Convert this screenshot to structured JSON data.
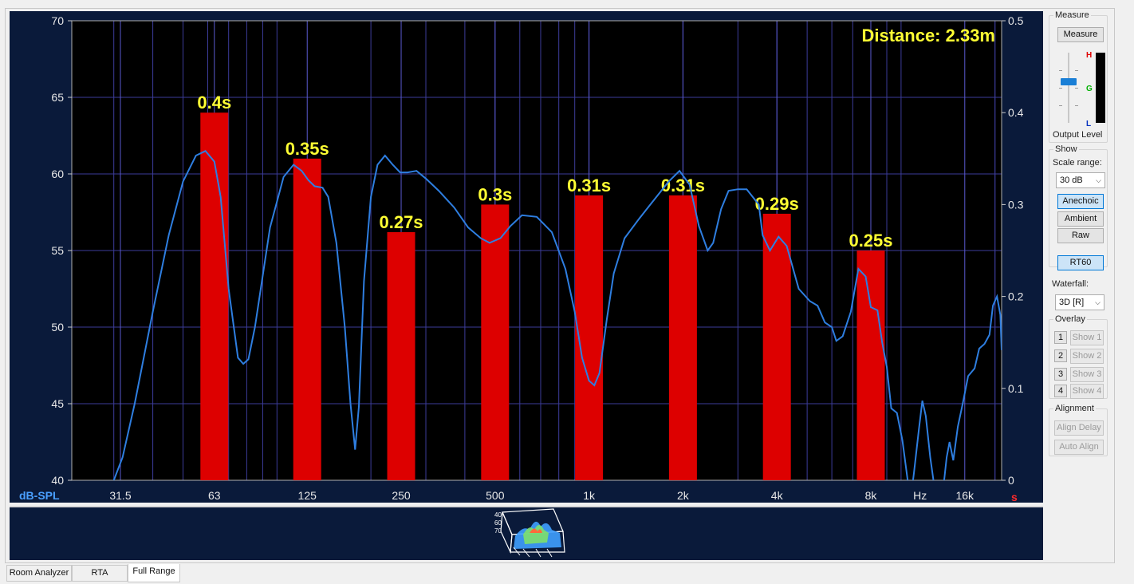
{
  "chart_data": {
    "type": "bar",
    "title": "Distance: 2.33m",
    "x_scale": "log",
    "x_unit": "Hz",
    "xlim": [
      22,
      21000
    ],
    "x_ticks": [
      {
        "label": "31.5",
        "value": 31.5
      },
      {
        "label": "63",
        "value": 63
      },
      {
        "label": "125",
        "value": 125
      },
      {
        "label": "250",
        "value": 250
      },
      {
        "label": "500",
        "value": 500
      },
      {
        "label": "1k",
        "value": 1000
      },
      {
        "label": "2k",
        "value": 2000
      },
      {
        "label": "4k",
        "value": 4000
      },
      {
        "label": "8k",
        "value": 8000
      },
      {
        "label": "16k",
        "value": 16000
      }
    ],
    "ylabel_left": "dB-SPL",
    "ylim_left": [
      40,
      70
    ],
    "y_ticks_left": [
      40,
      45,
      50,
      55,
      60,
      65,
      70
    ],
    "ylabel_right": "s",
    "ylim_right": [
      0,
      0.5
    ],
    "y_ticks_right": [
      "0",
      "0.1",
      "0.2",
      "0.3",
      "0.4",
      "0.5"
    ],
    "grid": true,
    "bar_series": {
      "name": "RT60",
      "color": "#dd0000",
      "axis": "right",
      "categories": [
        63,
        125,
        250,
        500,
        1000,
        2000,
        4000,
        8000
      ],
      "values": [
        0.4,
        0.35,
        0.27,
        0.3,
        0.31,
        0.31,
        0.29,
        0.25
      ],
      "labels": [
        "0.4s",
        "0.35s",
        "0.27s",
        "0.3s",
        "0.31s",
        "0.31s",
        "0.29s",
        "0.25s"
      ]
    },
    "line_series": {
      "color": "#2e7ee0",
      "axis": "left",
      "points": [
        [
          30,
          40
        ],
        [
          32,
          41.5
        ],
        [
          35,
          45
        ],
        [
          40,
          51
        ],
        [
          45,
          56
        ],
        [
          50,
          59.5
        ],
        [
          55,
          61.2
        ],
        [
          59,
          61.5
        ],
        [
          63,
          60.8
        ],
        [
          66,
          58.5
        ],
        [
          70,
          52.5
        ],
        [
          75,
          48
        ],
        [
          78,
          47.6
        ],
        [
          81,
          47.9
        ],
        [
          85,
          50
        ],
        [
          95,
          56.5
        ],
        [
          105,
          59.8
        ],
        [
          113,
          60.6
        ],
        [
          120,
          60.2
        ],
        [
          126,
          59.6
        ],
        [
          132,
          59.2
        ],
        [
          140,
          59.1
        ],
        [
          146,
          58.5
        ],
        [
          155,
          55.5
        ],
        [
          165,
          50
        ],
        [
          172,
          45
        ],
        [
          178,
          42
        ],
        [
          183,
          44.8
        ],
        [
          190,
          53
        ],
        [
          200,
          58.5
        ],
        [
          210,
          60.6
        ],
        [
          222,
          61.2
        ],
        [
          235,
          60.6
        ],
        [
          248,
          60.1
        ],
        [
          262,
          60.1
        ],
        [
          280,
          60.2
        ],
        [
          300,
          59.7
        ],
        [
          330,
          58.9
        ],
        [
          370,
          57.8
        ],
        [
          410,
          56.5
        ],
        [
          450,
          55.8
        ],
        [
          480,
          55.5
        ],
        [
          520,
          55.8
        ],
        [
          560,
          56.6
        ],
        [
          610,
          57.3
        ],
        [
          680,
          57.2
        ],
        [
          760,
          56.2
        ],
        [
          840,
          53.8
        ],
        [
          900,
          51
        ],
        [
          950,
          48
        ],
        [
          1000,
          46.5
        ],
        [
          1040,
          46.2
        ],
        [
          1080,
          47
        ],
        [
          1140,
          50.5
        ],
        [
          1200,
          53.5
        ],
        [
          1300,
          55.8
        ],
        [
          1450,
          57.1
        ],
        [
          1600,
          58.2
        ],
        [
          1800,
          59.5
        ],
        [
          1950,
          60.2
        ],
        [
          2100,
          59.3
        ],
        [
          2250,
          56.6
        ],
        [
          2400,
          55
        ],
        [
          2500,
          55.5
        ],
        [
          2650,
          57.7
        ],
        [
          2800,
          58.9
        ],
        [
          3000,
          59
        ],
        [
          3200,
          59
        ],
        [
          3500,
          58
        ],
        [
          3600,
          56
        ],
        [
          3800,
          55
        ],
        [
          4050,
          55.9
        ],
        [
          4300,
          55.3
        ],
        [
          4700,
          52.5
        ],
        [
          5100,
          51.7
        ],
        [
          5400,
          51.4
        ],
        [
          5700,
          50.3
        ],
        [
          6000,
          50
        ],
        [
          6200,
          49.1
        ],
        [
          6500,
          49.4
        ],
        [
          6900,
          51
        ],
        [
          7300,
          53.8
        ],
        [
          7700,
          53.3
        ],
        [
          8000,
          51.3
        ],
        [
          8400,
          51.1
        ],
        [
          8700,
          49
        ],
        [
          9000,
          47.4
        ],
        [
          9300,
          44.7
        ],
        [
          9700,
          44.4
        ],
        [
          10100,
          42.6
        ],
        [
          10500,
          40
        ],
        [
          10800,
          39.2
        ],
        [
          11000,
          40.5
        ],
        [
          11400,
          43.3
        ],
        [
          11700,
          45.2
        ],
        [
          12000,
          44.2
        ],
        [
          12400,
          41.5
        ],
        [
          12900,
          39
        ],
        [
          13400,
          38
        ],
        [
          14000,
          41.5
        ],
        [
          14300,
          42.5
        ],
        [
          14700,
          41.3
        ],
        [
          15200,
          43.5
        ],
        [
          15800,
          45.1
        ],
        [
          16400,
          46.8
        ],
        [
          17200,
          47.3
        ],
        [
          17800,
          48.6
        ],
        [
          18500,
          48.9
        ],
        [
          19200,
          49.5
        ],
        [
          19700,
          51.4
        ],
        [
          20300,
          52
        ],
        [
          20800,
          50.8
        ],
        [
          21000,
          48.5
        ],
        [
          21500,
          49.3
        ],
        [
          22100,
          49.4
        ],
        [
          22700,
          47.5
        ],
        [
          23400,
          42.5
        ]
      ]
    }
  },
  "waterfall": {
    "label": "Waterfall thumbnail"
  },
  "panel": {
    "measure": {
      "title": "Measure",
      "button": "Measure",
      "output_level_label": "Output Level",
      "meter_h": "H",
      "meter_g": "G",
      "meter_l": "L"
    },
    "show": {
      "title": "Show",
      "scale_range_label": "Scale range:",
      "scale_range_value": "30 dB",
      "anechoic": "Anechoic",
      "ambient": "Ambient",
      "raw": "Raw",
      "rt60": "RT60",
      "waterfall_label": "Waterfall:",
      "waterfall_value": "3D [R]"
    },
    "overlay": {
      "title": "Overlay",
      "rows": [
        {
          "num": "1",
          "label": "Show 1"
        },
        {
          "num": "2",
          "label": "Show 2"
        },
        {
          "num": "3",
          "label": "Show 3"
        },
        {
          "num": "4",
          "label": "Show 4"
        }
      ]
    },
    "alignment": {
      "title": "Alignment",
      "align_delay": "Align Delay",
      "auto_align": "Auto Align"
    }
  },
  "tabs": [
    {
      "label": "Room Analyzer",
      "selected": false
    },
    {
      "label": "RTA",
      "selected": false
    },
    {
      "label": "Full Range",
      "selected": true
    }
  ]
}
